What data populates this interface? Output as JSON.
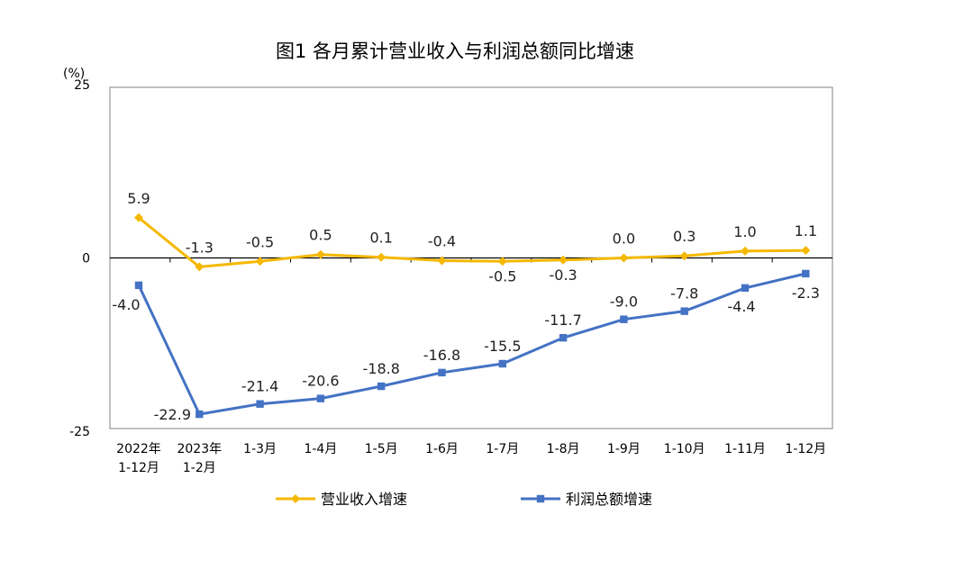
{
  "chart_data": {
    "type": "line",
    "title": "图1  各月累计营业收入与利润总额同比增速",
    "ylabel": "(%)",
    "ylim": [
      -25,
      25
    ],
    "yticks": [
      25,
      0,
      -25
    ],
    "categories": [
      [
        "2022年",
        "1-12月"
      ],
      [
        "2023年",
        "1-2月"
      ],
      [
        "1-3月"
      ],
      [
        "1-4月"
      ],
      [
        "1-5月"
      ],
      [
        "1-6月"
      ],
      [
        "1-7月"
      ],
      [
        "1-8月"
      ],
      [
        "1-9月"
      ],
      [
        "1-10月"
      ],
      [
        "1-11月"
      ],
      [
        "1-12月"
      ]
    ],
    "series": [
      {
        "name": "营业收入增速",
        "color": "#F5B800",
        "marker": "diamond",
        "values": [
          5.9,
          -1.3,
          -0.5,
          0.5,
          0.1,
          -0.4,
          -0.5,
          -0.3,
          0.0,
          0.3,
          1.0,
          1.1
        ],
        "labels": [
          "5.9",
          "-1.3",
          "-0.5",
          "0.5",
          "0.1",
          "-0.4",
          "-0.5",
          "-0.3",
          "0.0",
          "0.3",
          "1.0",
          "1.1"
        ]
      },
      {
        "name": "利润总额增速",
        "color": "#4472C4",
        "marker": "square",
        "values": [
          -4.0,
          -22.9,
          -21.4,
          -20.6,
          -18.8,
          -16.8,
          -15.5,
          -11.7,
          -9.0,
          -7.8,
          -4.4,
          -2.3
        ],
        "labels": [
          "-4.0",
          "-22.9",
          "-21.4",
          "-20.6",
          "-18.8",
          "-16.8",
          "-15.5",
          "-11.7",
          "-9.0",
          "-7.8",
          "-4.4",
          "-2.3"
        ]
      }
    ],
    "legend_position": "bottom",
    "grid": false
  }
}
